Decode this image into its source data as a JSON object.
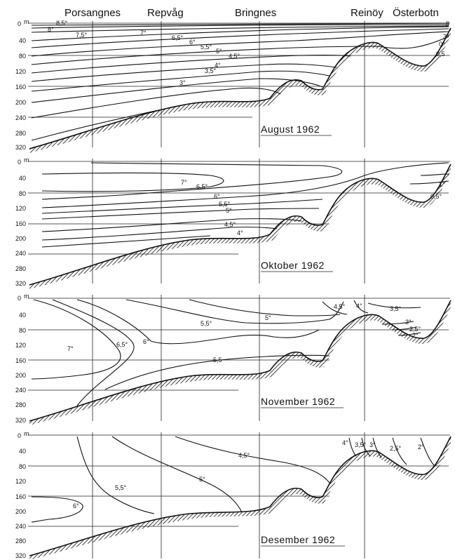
{
  "stations": [
    "Porsangnes",
    "Repvåg",
    "Bringnes",
    "Reinöy",
    "Österbotn"
  ],
  "depth_unit": "m",
  "panels": [
    {
      "title": "August 1962",
      "depth_ticks": [
        "0",
        "40",
        "80",
        "120",
        "160",
        "200",
        "240",
        "280",
        "320"
      ],
      "isotherm_labels": [
        "8,5°",
        "8°",
        "7,5°",
        "7°",
        "6,5°",
        "6°",
        "5,5°",
        "5°",
        "4,5°",
        "4°",
        "3,5°",
        "3°",
        "8",
        "3°",
        "0°",
        "0,5"
      ]
    },
    {
      "title": "Oktober 1962",
      "depth_ticks": [
        "0",
        "40",
        "80",
        "120",
        "160",
        "200",
        "240",
        "280",
        "320"
      ],
      "isotherm_labels": [
        "7°",
        "6,5°",
        "6°",
        "5,5°",
        "5°",
        "4,5°",
        "4°",
        "1°",
        "0,5°"
      ]
    },
    {
      "title": "November 1962",
      "depth_ticks": [
        "0",
        "40",
        "80",
        "120",
        "160",
        "200",
        "240",
        "280",
        "320"
      ],
      "isotherm_labels": [
        "7°",
        "6,5°",
        "6°",
        "5,5°",
        "5°",
        "5,5",
        "4,5°",
        "4°",
        "3,5°",
        "3°",
        "2,5°",
        "2°"
      ]
    },
    {
      "title": "Desember 1962",
      "depth_ticks": [
        "0",
        "40",
        "80",
        "120",
        "160",
        "200",
        "240",
        "280",
        "320"
      ],
      "isotherm_labels": [
        "6°",
        "5,5°",
        "5°",
        "4,5°",
        "4°",
        "3,5°",
        "3°",
        "2,5°",
        "2°"
      ]
    }
  ]
}
